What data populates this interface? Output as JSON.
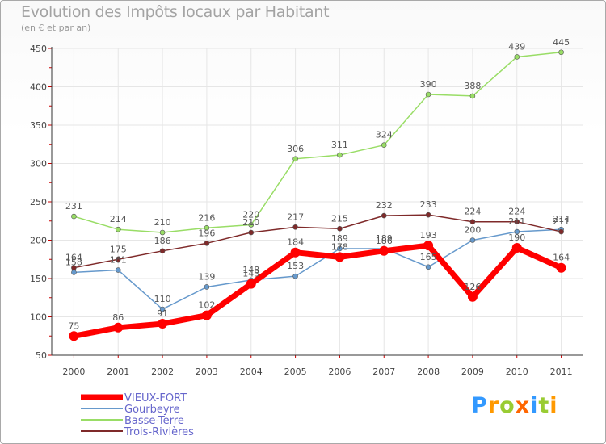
{
  "chart_data": {
    "type": "line",
    "title": "Evolution des Impôts locaux par Habitant",
    "subtitle": "(en € et par an)",
    "x": [
      "2000",
      "2001",
      "2002",
      "2003",
      "2004",
      "2005",
      "2006",
      "2007",
      "2008",
      "2009",
      "2010",
      "2011"
    ],
    "ylim": [
      50,
      450
    ],
    "yticks": [
      50,
      100,
      150,
      200,
      250,
      300,
      350,
      400,
      450
    ],
    "series": [
      {
        "name": "VIEUX-FORT",
        "color": "#ff0000",
        "values": [
          75,
          86,
          91,
          102,
          143,
          184,
          178,
          186,
          193,
          126,
          190,
          164
        ]
      },
      {
        "name": "Gourbeyre",
        "color": "#6699cc",
        "values": [
          158,
          161,
          110,
          139,
          148,
          153,
          189,
          189,
          165,
          200,
          211,
          214
        ]
      },
      {
        "name": "Basse-Terre",
        "color": "#99dd66",
        "values": [
          231,
          214,
          210,
          216,
          220,
          306,
          311,
          324,
          390,
          388,
          439,
          445
        ]
      },
      {
        "name": "Trois-Rivières",
        "color": "#7f2a2a",
        "values": [
          164,
          175,
          186,
          196,
          210,
          217,
          215,
          232,
          233,
          224,
          224,
          211
        ]
      }
    ]
  },
  "logo": {
    "letters": [
      "P",
      "r",
      "o",
      "x",
      "i",
      "t",
      "i"
    ],
    "colors": [
      "#3399ff",
      "#ff9900",
      "#99cc33",
      "#ff6600",
      "#3399ff",
      "#99cc33",
      "#ff9900"
    ]
  }
}
